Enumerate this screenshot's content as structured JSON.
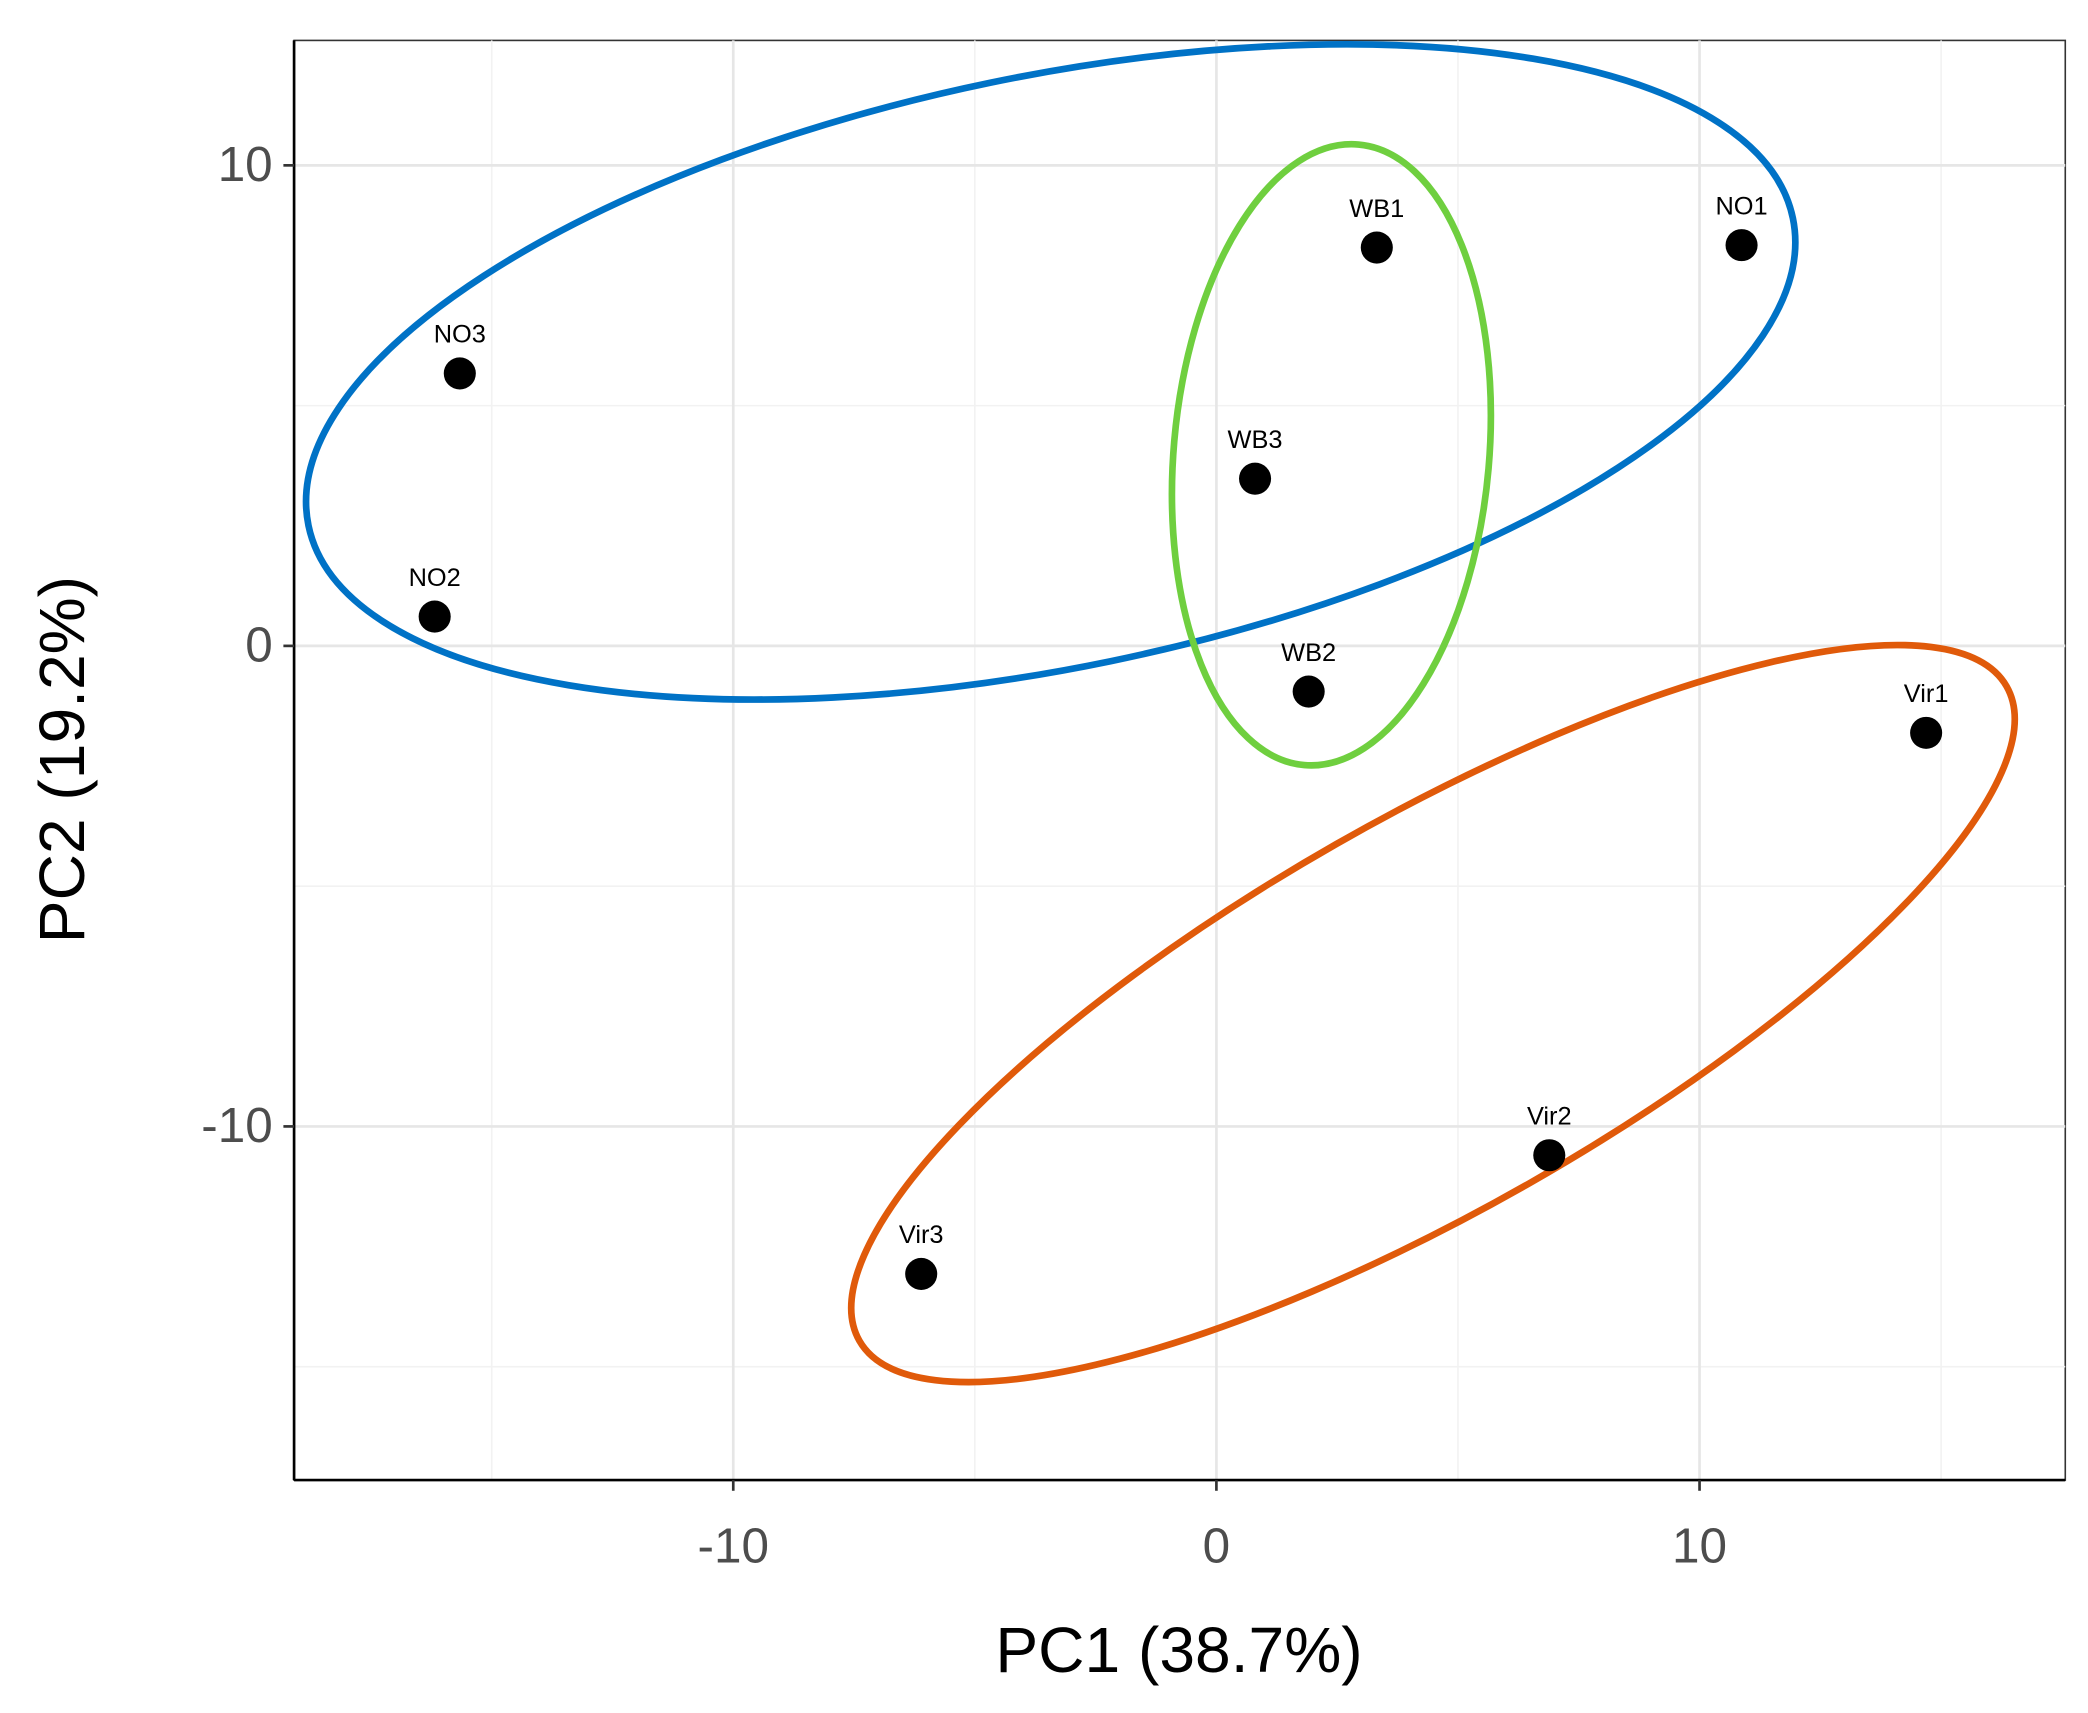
{
  "chart_data": {
    "type": "scatter",
    "x_label": "PC1 (38.7%)",
    "y_label": "PC2 (19.2%)",
    "xlim": [
      -19.09,
      17.57
    ],
    "ylim": [
      -17.36,
      12.6
    ],
    "xticks": [
      -10,
      0,
      10
    ],
    "yticks": [
      -10,
      0,
      10
    ],
    "xminorticks": [
      -15,
      -5,
      5,
      15
    ],
    "yminorticks": [
      -15,
      -5,
      5
    ],
    "grid": true,
    "series": [
      {
        "color": "#000000",
        "labels": [
          "NO1",
          "NO2",
          "NO3"
        ],
        "x": [
          10.87,
          -16.18,
          -15.66
        ],
        "values": [
          8.34,
          0.61,
          5.67
        ]
      },
      {
        "color": "#000000",
        "labels": [
          "WB1",
          "WB2",
          "WB3"
        ],
        "x": [
          3.32,
          1.91,
          0.8
        ],
        "values": [
          8.29,
          -0.95,
          3.48
        ]
      },
      {
        "color": "#000000",
        "labels": [
          "Vir1",
          "Vir2",
          "Vir3"
        ],
        "x": [
          14.69,
          6.89,
          -6.11
        ],
        "values": [
          -1.81,
          -10.6,
          -13.07
        ]
      }
    ]
  }
}
